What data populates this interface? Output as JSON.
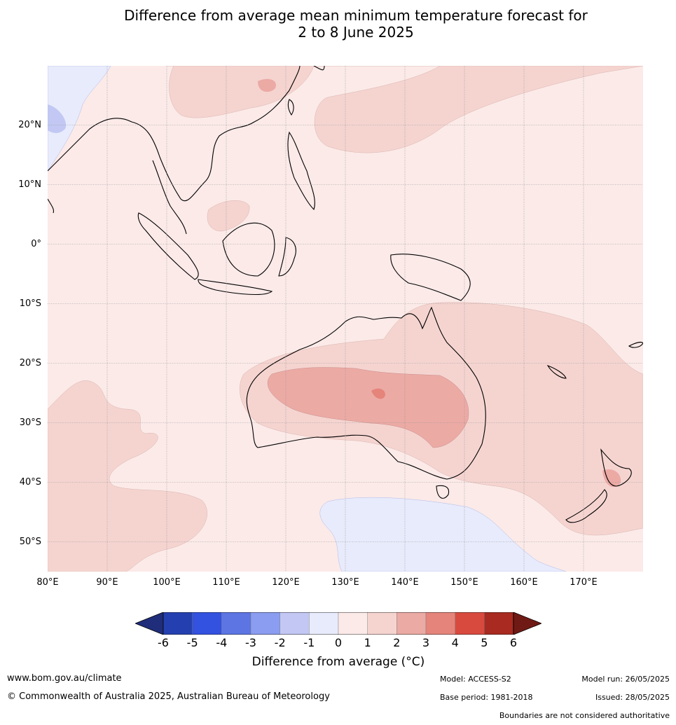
{
  "title_line1": "Difference from average mean minimum temperature forecast for",
  "title_line2": "2 to 8 June 2025",
  "lat_labels": [
    "20°N",
    "10°N",
    "0°",
    "10°S",
    "20°S",
    "30°S",
    "40°S",
    "50°S"
  ],
  "lon_labels": [
    "80°E",
    "90°E",
    "100°E",
    "110°E",
    "120°E",
    "130°E",
    "140°E",
    "150°E",
    "160°E",
    "170°E"
  ],
  "colorbar": {
    "ticks": [
      "-6",
      "-5",
      "-4",
      "-3",
      "-2",
      "-1",
      "0",
      "1",
      "2",
      "3",
      "4",
      "5",
      "6"
    ],
    "colors": [
      "#1f2d7a",
      "#2440b0",
      "#3352e0",
      "#5c75e3",
      "#8a9df0",
      "#c2c8f3",
      "#e8ebfb",
      "#fbeae8",
      "#f5d4d0",
      "#ecaaa5",
      "#e5847b",
      "#d94a3e",
      "#a92a20",
      "#701a15"
    ],
    "label": "Difference from average (°C)"
  },
  "footer": {
    "website": "www.bom.gov.au/climate",
    "copyright": "© Commonwealth of Australia 2025, Australian Bureau of Meteorology",
    "model": "Model: ACCESS-S2",
    "base_period": "Base period: 1981-2018",
    "model_run": "Model run: 26/05/2025",
    "issued": "Issued: 28/05/2025",
    "disclaimer": "Boundaries are not considered authoritative"
  }
}
